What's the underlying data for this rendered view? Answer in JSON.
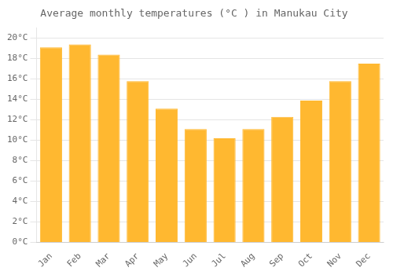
{
  "chart_data": {
    "type": "bar",
    "title": "Average monthly temperatures (°C ) in Manukau City",
    "categories": [
      "Jan",
      "Feb",
      "Mar",
      "Apr",
      "May",
      "Jun",
      "Jul",
      "Aug",
      "Sep",
      "Oct",
      "Nov",
      "Dec"
    ],
    "values": [
      19.1,
      19.4,
      18.4,
      15.8,
      13.1,
      11.1,
      10.2,
      11.1,
      12.3,
      13.9,
      15.8,
      17.5
    ],
    "color": "#FFB830",
    "ylim": [
      0,
      21
    ],
    "yticks": [
      {
        "value": 0,
        "label": "0°C"
      },
      {
        "value": 2,
        "label": "2°C"
      },
      {
        "value": 4,
        "label": "4°C"
      },
      {
        "value": 6,
        "label": "6°C"
      },
      {
        "value": 8,
        "label": "8°C"
      },
      {
        "value": 10,
        "label": "10°C"
      },
      {
        "value": 12,
        "label": "12°C"
      },
      {
        "value": 14,
        "label": "14°C"
      },
      {
        "value": 16,
        "label": "16°C"
      },
      {
        "value": 18,
        "label": "18°C"
      },
      {
        "value": 20,
        "label": "20°C"
      }
    ],
    "grid": true
  }
}
